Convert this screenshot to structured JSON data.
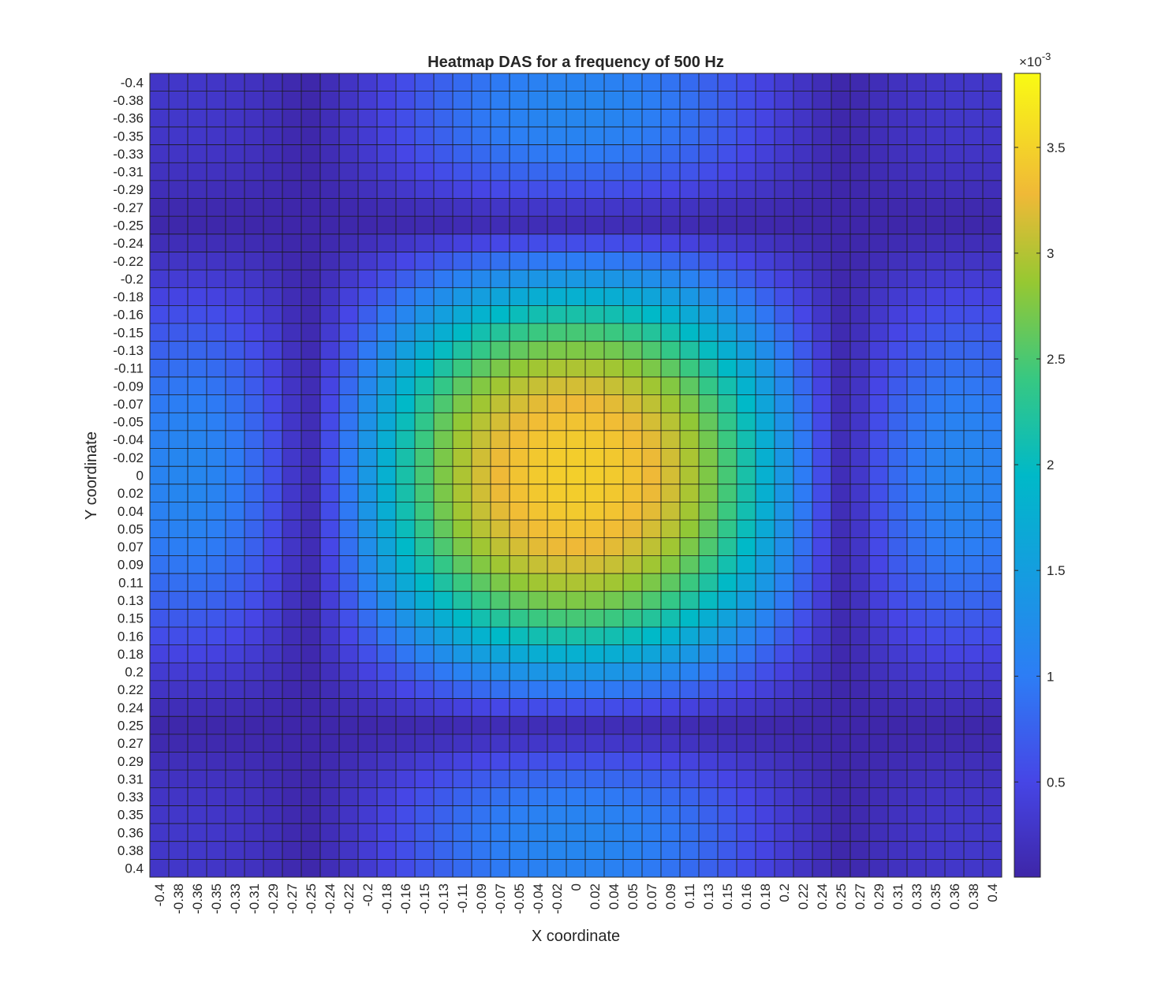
{
  "chart_data": {
    "type": "heatmap",
    "title": "Heatmap DAS for a frequency of 500 Hz",
    "xlabel": "X coordinate",
    "ylabel": "Y coordinate",
    "x_tick_labels": [
      "-0.4",
      "-0.38",
      "-0.36",
      "-0.35",
      "-0.33",
      "-0.31",
      "-0.29",
      "-0.27",
      "-0.25",
      "-0.24",
      "-0.22",
      "-0.2",
      "-0.18",
      "-0.16",
      "-0.15",
      "-0.13",
      "-0.11",
      "-0.09",
      "-0.07",
      "-0.05",
      "-0.04",
      "-0.02",
      "0",
      "0.02",
      "0.04",
      "0.05",
      "0.07",
      "0.09",
      "0.11",
      "0.13",
      "0.15",
      "0.16",
      "0.18",
      "0.2",
      "0.22",
      "0.24",
      "0.25",
      "0.27",
      "0.29",
      "0.31",
      "0.33",
      "0.35",
      "0.36",
      "0.38",
      "0.4"
    ],
    "y_tick_labels": [
      "-0.4",
      "-0.38",
      "-0.36",
      "-0.35",
      "-0.33",
      "-0.31",
      "-0.29",
      "-0.27",
      "-0.25",
      "-0.24",
      "-0.22",
      "-0.2",
      "-0.18",
      "-0.16",
      "-0.15",
      "-0.13",
      "-0.11",
      "-0.09",
      "-0.07",
      "-0.05",
      "-0.04",
      "-0.02",
      "0",
      "0.02",
      "0.04",
      "0.05",
      "0.07",
      "0.09",
      "0.11",
      "0.13",
      "0.15",
      "0.16",
      "0.18",
      "0.2",
      "0.22",
      "0.24",
      "0.25",
      "0.27",
      "0.29",
      "0.31",
      "0.33",
      "0.35",
      "0.36",
      "0.38",
      "0.4"
    ],
    "x_range": [
      -0.4,
      0.4
    ],
    "y_range": [
      -0.4,
      0.4
    ],
    "grid_points": 45,
    "value_model": {
      "note_visible": false,
      "peak_value": 0.00385,
      "peak_location": [
        0,
        0
      ],
      "first_null_radius": 0.26,
      "outer_sidelobe_level": 0.0012
    },
    "colorbar": {
      "min": 5e-05,
      "max": 0.00385,
      "ticks": [
        0.0005,
        0.001,
        0.0015,
        0.002,
        0.0025,
        0.003,
        0.0035
      ],
      "tick_labels": [
        "0.5",
        "1",
        "1.5",
        "2",
        "2.5",
        "3",
        "3.5"
      ],
      "exponent_label": "×10",
      "exponent_power": "-3",
      "colormap": "parula"
    },
    "grid": true,
    "cell_edge_color": "#1a1a1a",
    "y_axis_direction": "reverse"
  }
}
